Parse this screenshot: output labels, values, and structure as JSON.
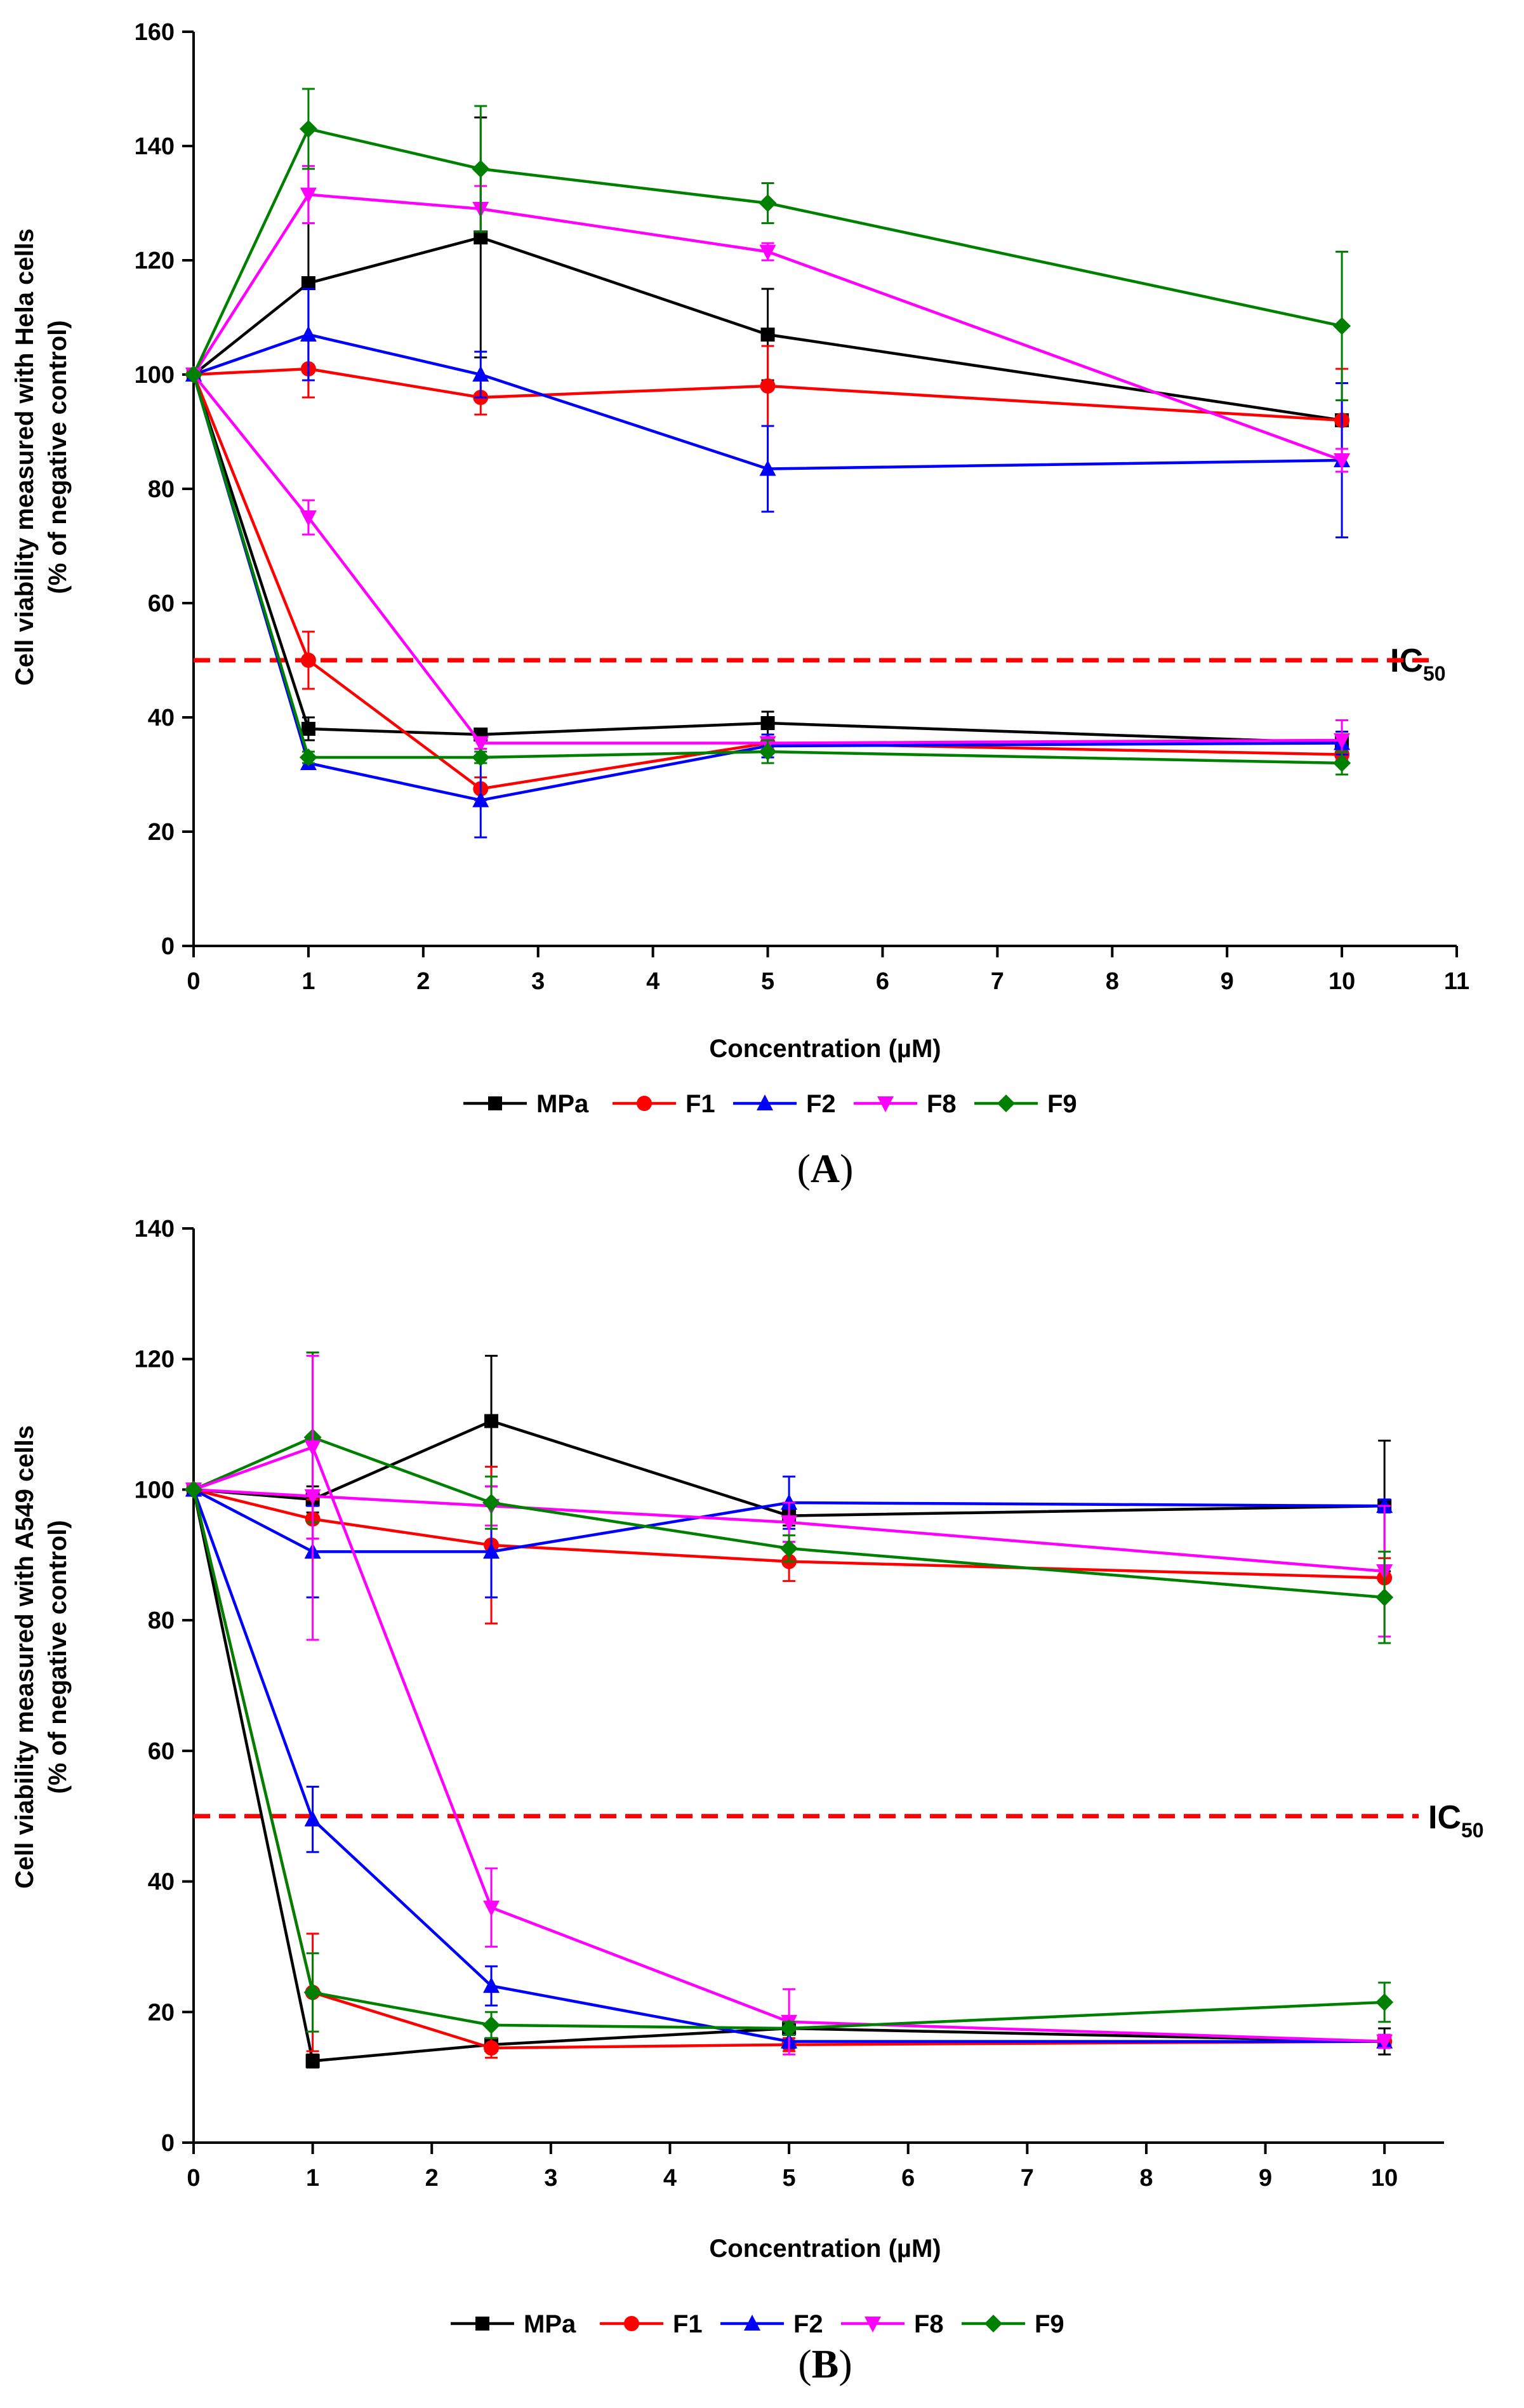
{
  "colors": {
    "MPa": "#000000",
    "F1": "#ff0000",
    "F2": "#0000ff",
    "F8": "#ff00ff",
    "F9": "#008000",
    "ic50": "#ff0000"
  },
  "chart_data": [
    {
      "panel": "A",
      "panel_label": "A",
      "type": "line",
      "title": "",
      "xlabel": "Concentration (µM)",
      "ylabel_line1": "Cell viability measured with Hela cells",
      "ylabel_line2": "(% of negative control)",
      "xlim": [
        0,
        11
      ],
      "ylim": [
        0,
        160
      ],
      "xticks": [
        "0",
        "1",
        "2",
        "3",
        "4",
        "5",
        "6",
        "7",
        "8",
        "9",
        "10",
        "11"
      ],
      "yticks": [
        "0",
        "20",
        "40",
        "60",
        "80",
        "100",
        "120",
        "140",
        "160"
      ],
      "ic50_value": 50,
      "ic50_label": "IC",
      "ic50_sub": "50",
      "legend": [
        "MPa",
        "F1",
        "F2",
        "F8",
        "F9"
      ],
      "x": [
        0,
        1,
        2.5,
        5,
        10
      ],
      "series": [
        {
          "name": "MPa",
          "marker": "square",
          "values": [
            100,
            116,
            124,
            107,
            92
          ],
          "errors": [
            0,
            20,
            21,
            8,
            0
          ]
        },
        {
          "name": "F1",
          "marker": "circle",
          "values": [
            100,
            101,
            96,
            98,
            92
          ],
          "errors": [
            0,
            5,
            3,
            7,
            9
          ]
        },
        {
          "name": "F2",
          "marker": "triangle",
          "values": [
            100,
            107,
            100,
            83.5,
            85
          ],
          "errors": [
            0,
            8,
            4,
            7.5,
            13.5
          ]
        },
        {
          "name": "F8",
          "marker": "invtri",
          "values": [
            100,
            131.5,
            129,
            121.5,
            85
          ],
          "errors": [
            0,
            5,
            4,
            1.5,
            2
          ]
        },
        {
          "name": "F9",
          "marker": "diamond",
          "values": [
            100,
            143,
            136,
            130,
            108.5
          ],
          "errors": [
            0,
            7,
            11,
            3.5,
            13
          ]
        },
        {
          "name": "MPa",
          "marker": "square",
          "values": [
            100,
            38,
            37,
            39,
            35.5
          ],
          "errors": [
            0,
            2,
            1,
            2,
            1
          ]
        },
        {
          "name": "F1",
          "marker": "circle",
          "values": [
            100,
            50,
            27.5,
            35.5,
            33.5
          ],
          "errors": [
            0,
            5,
            2,
            1.5,
            1
          ]
        },
        {
          "name": "F2",
          "marker": "triangle",
          "values": [
            100,
            32,
            25.5,
            35,
            35.5
          ],
          "errors": [
            0,
            1,
            6.5,
            2,
            2
          ]
        },
        {
          "name": "F8",
          "marker": "invtri",
          "values": [
            100,
            75,
            35.5,
            35.5,
            36
          ],
          "errors": [
            0,
            3,
            1,
            1,
            3.5
          ]
        },
        {
          "name": "F9",
          "marker": "diamond",
          "values": [
            100,
            33,
            33,
            34,
            32
          ],
          "errors": [
            0,
            1,
            1,
            2,
            2
          ]
        }
      ]
    },
    {
      "panel": "B",
      "panel_label": "B",
      "type": "line",
      "title": "",
      "xlabel": "Concentration (µM)",
      "ylabel_line1": "Cell viability measured with A549 cells",
      "ylabel_line2": "(% of negative control)",
      "xlim": [
        0,
        10.5
      ],
      "ylim": [
        0,
        140
      ],
      "xticks": [
        "0",
        "1",
        "2",
        "3",
        "4",
        "5",
        "6",
        "7",
        "8",
        "9",
        "10"
      ],
      "yticks": [
        "0",
        "20",
        "40",
        "60",
        "80",
        "100",
        "120",
        "140"
      ],
      "ic50_value": 50,
      "ic50_label": "IC",
      "ic50_sub": "50",
      "legend": [
        "MPa",
        "F1",
        "F2",
        "F8",
        "F9"
      ],
      "x": [
        0,
        1,
        2.5,
        5,
        10
      ],
      "series": [
        {
          "name": "MPa",
          "marker": "square",
          "values": [
            100,
            98.5,
            110.5,
            96,
            97.5
          ],
          "errors": [
            0,
            2,
            10,
            1.5,
            10
          ]
        },
        {
          "name": "F1",
          "marker": "circle",
          "values": [
            100,
            95.5,
            91.5,
            89,
            86.5
          ],
          "errors": [
            0,
            3,
            12,
            3,
            3
          ]
        },
        {
          "name": "F2",
          "marker": "triangle",
          "values": [
            100,
            90.5,
            90.5,
            98,
            97.5
          ],
          "errors": [
            0,
            7,
            7,
            4,
            1
          ]
        },
        {
          "name": "F8",
          "marker": "invtri",
          "values": [
            100,
            99,
            97.5,
            95,
            87.5
          ],
          "errors": [
            0,
            22,
            3,
            3,
            10
          ]
        },
        {
          "name": "F9",
          "marker": "diamond",
          "values": [
            100,
            108,
            98,
            91,
            83.5
          ],
          "errors": [
            0,
            13,
            4,
            2,
            7
          ]
        },
        {
          "name": "MPa",
          "marker": "square",
          "values": [
            100,
            12.5,
            15,
            17.5,
            15.5
          ],
          "errors": [
            0,
            1,
            1,
            1,
            2
          ]
        },
        {
          "name": "F1",
          "marker": "circle",
          "values": [
            100,
            23,
            14.5,
            15,
            15.5
          ],
          "errors": [
            0,
            9,
            1.5,
            1,
            1
          ]
        },
        {
          "name": "F2",
          "marker": "triangle",
          "values": [
            100,
            49.5,
            24,
            15.5,
            15.5
          ],
          "errors": [
            0,
            5,
            3,
            1,
            1
          ]
        },
        {
          "name": "F8",
          "marker": "invtri",
          "values": [
            100,
            106.5,
            36,
            18.5,
            15.5
          ],
          "errors": [
            0,
            14,
            6,
            5,
            1
          ]
        },
        {
          "name": "F9",
          "marker": "diamond",
          "values": [
            100,
            23,
            18,
            17.5,
            21.5
          ],
          "errors": [
            0,
            6,
            2,
            1,
            3
          ]
        }
      ]
    }
  ]
}
